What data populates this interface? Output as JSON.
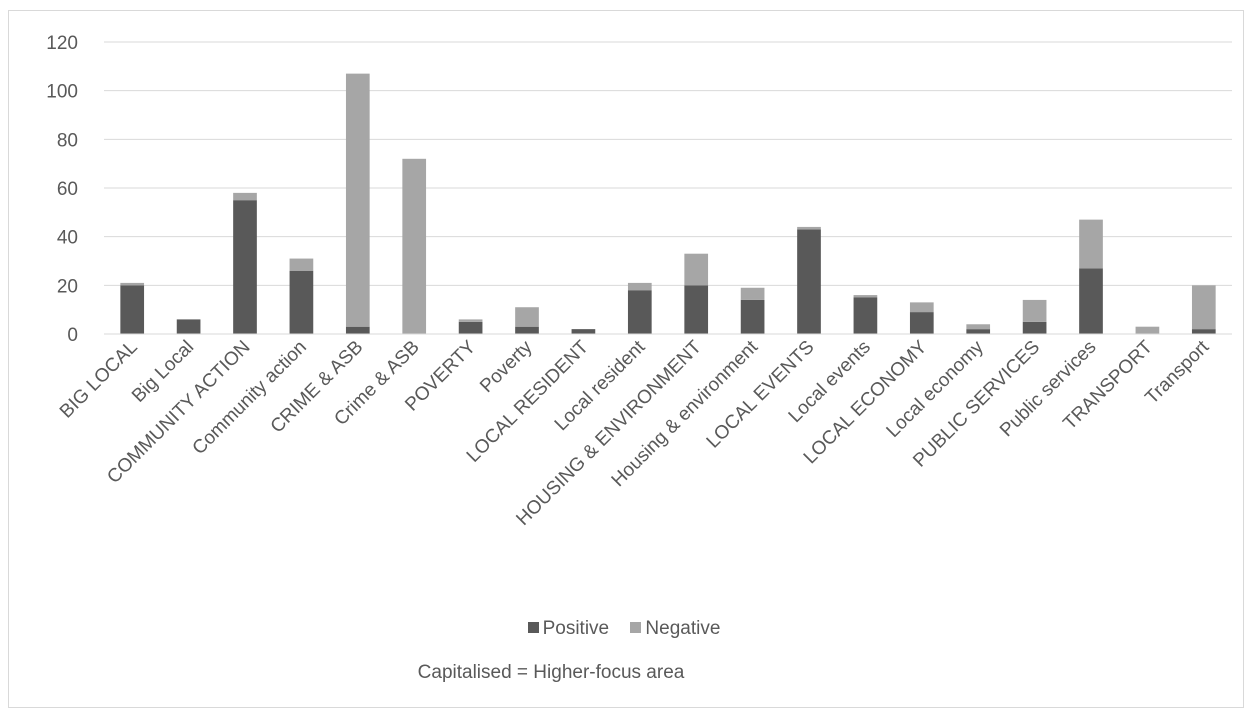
{
  "chart_data": {
    "type": "bar",
    "stacked": true,
    "categories": [
      "BIG LOCAL",
      "Big Local",
      "COMMUNITY ACTION",
      "Community action",
      "CRIME & ASB",
      "Crime & ASB",
      "POVERTY",
      "Poverty",
      "LOCAL RESIDENT",
      "Local resident",
      "HOUSING & ENVIRONMENT",
      "Housing & environment",
      "LOCAL EVENTS",
      "Local events",
      "LOCAL ECONOMY",
      "Local economy",
      "PUBLIC SERVICES",
      "Public services",
      "TRANSPORT",
      "Transport"
    ],
    "series": [
      {
        "name": "Positive",
        "color": "#595959",
        "values": [
          20,
          6,
          55,
          26,
          3,
          0,
          5,
          3,
          2,
          18,
          20,
          14,
          43,
          15,
          9,
          2,
          5,
          27,
          0,
          2
        ]
      },
      {
        "name": "Negative",
        "color": "#a6a6a6",
        "values": [
          1,
          0,
          3,
          5,
          104,
          72,
          1,
          8,
          0,
          3,
          13,
          5,
          1,
          1,
          4,
          2,
          9,
          20,
          3,
          18
        ]
      }
    ],
    "ylim": [
      0,
      120
    ],
    "yticks": [
      "0",
      "20",
      "40",
      "60",
      "80",
      "100",
      "120"
    ],
    "grid": true,
    "legend_position": "bottom",
    "note": "Capitalised = Higher-focus area"
  }
}
